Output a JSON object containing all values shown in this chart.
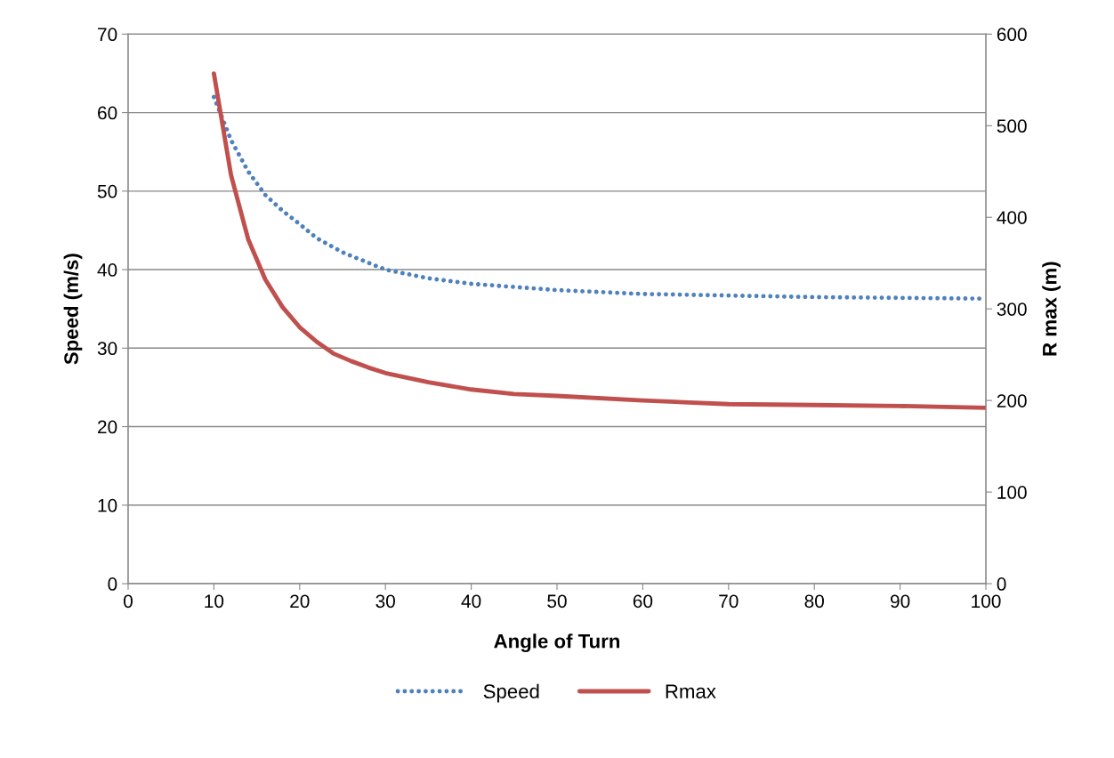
{
  "chart_data": {
    "type": "line",
    "xlabel": "Angle of Turn",
    "ylabel": "Speed (m/s)",
    "y2label": "R max (m)",
    "xlim": [
      0,
      100
    ],
    "xticks": [
      0,
      10,
      20,
      30,
      40,
      50,
      60,
      70,
      80,
      90,
      100
    ],
    "ylim": [
      0,
      70
    ],
    "yticks": [
      0,
      10,
      20,
      30,
      40,
      50,
      60,
      70
    ],
    "y2lim": [
      0,
      600
    ],
    "y2ticks": [
      0,
      100,
      200,
      300,
      400,
      500,
      600
    ],
    "grid": "y",
    "legend": "bottom",
    "marker": "none",
    "series": [
      {
        "name": "Speed",
        "color": "#4f81bd",
        "line_style": "dotted",
        "x": [
          10,
          12,
          14,
          16,
          18,
          20,
          22,
          25,
          30,
          35,
          40,
          50,
          60,
          70,
          80,
          90,
          100
        ],
        "values": [
          62,
          56.5,
          52.5,
          49.5,
          47.5,
          45.8,
          44,
          42.2,
          40,
          38.9,
          38.2,
          37.4,
          36.9,
          36.7,
          36.5,
          36.4,
          36.3
        ]
      },
      {
        "name": "Rmax",
        "color": "#c0504d",
        "line_style": "solid",
        "axis": "y2",
        "x": [
          10,
          12,
          14,
          16,
          18,
          20,
          22,
          24,
          26,
          28,
          30,
          35,
          40,
          45,
          50,
          60,
          70,
          80,
          90,
          100
        ],
        "values": [
          557,
          446,
          376,
          332,
          302,
          280,
          264,
          251,
          243,
          236,
          230,
          220,
          212,
          207,
          205,
          200,
          196,
          195,
          194,
          192
        ]
      }
    ]
  }
}
